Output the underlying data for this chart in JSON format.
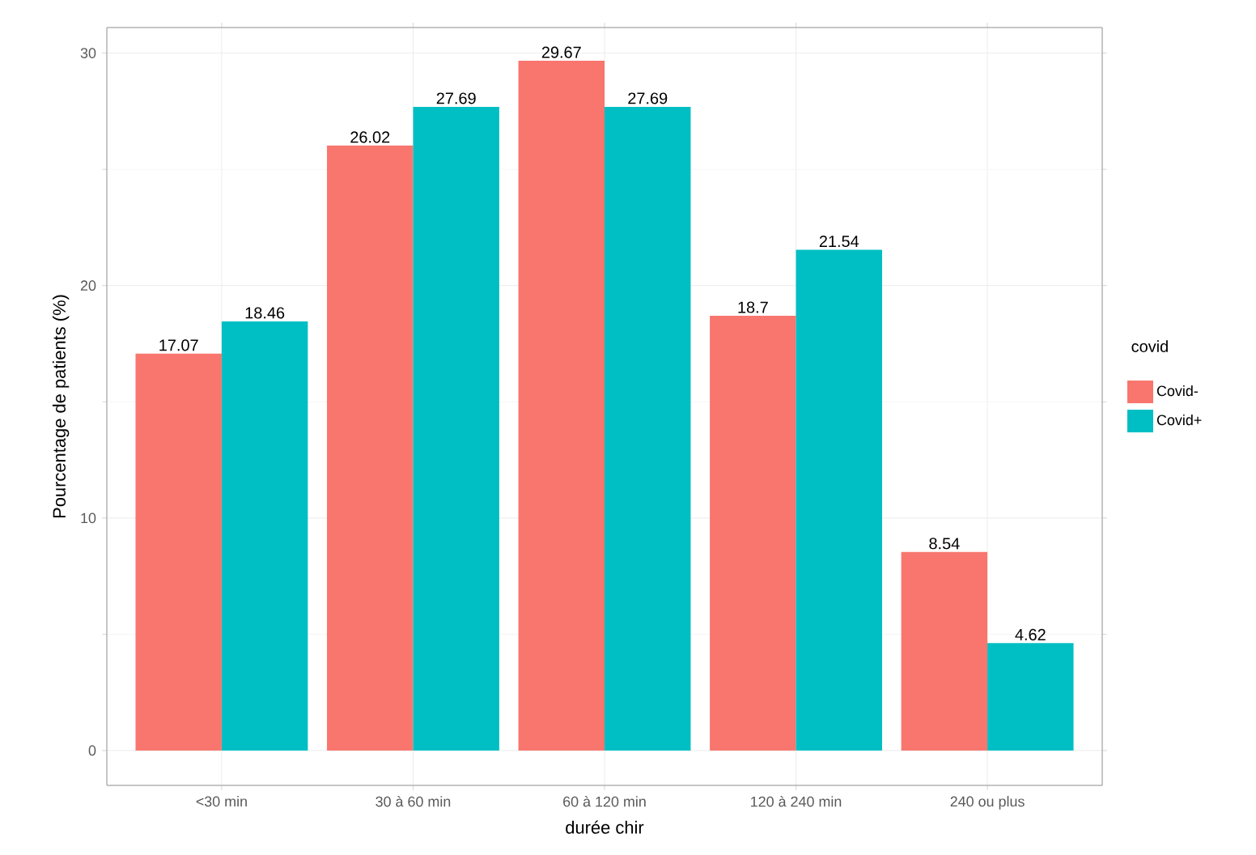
{
  "chart_data": {
    "type": "bar",
    "xlabel": "durée chir",
    "ylabel": "Pourcentage de patients (%)",
    "legend_title": "covid",
    "categories": [
      "<30 min",
      "30 à 60 min",
      "60 à 120 min",
      "120 à 240 min",
      "240 ou plus"
    ],
    "series": [
      {
        "name": "Covid-",
        "color": "#f8766d",
        "values": [
          17.07,
          26.02,
          29.67,
          18.7,
          8.54
        ]
      },
      {
        "name": "Covid+",
        "color": "#00bfc4",
        "values": [
          18.46,
          27.69,
          27.69,
          21.54,
          4.62
        ]
      }
    ],
    "ylim": [
      -1.5,
      31.1
    ],
    "yticks": [
      0,
      10,
      20,
      30
    ],
    "grid": true,
    "legend": "right",
    "data_labels": true
  }
}
